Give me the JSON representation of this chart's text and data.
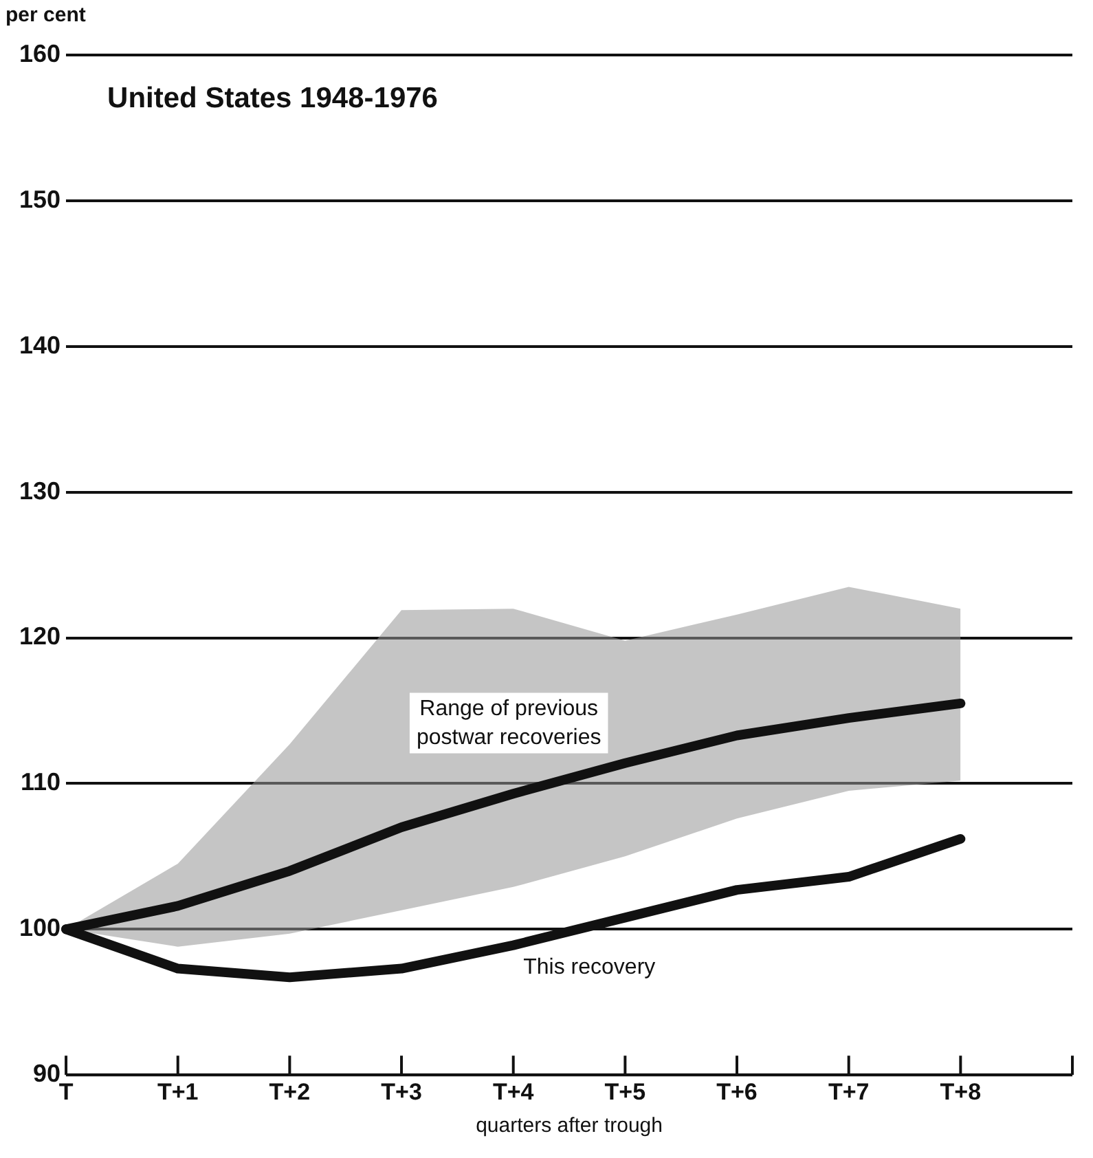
{
  "chart_data": {
    "type": "line",
    "title": "United States 1948-1976",
    "xlabel": "quarters after trough",
    "ylabel": "per cent",
    "categories": [
      "T",
      "T+1",
      "T+2",
      "T+3",
      "T+4",
      "T+5",
      "T+6",
      "T+7",
      "T+8",
      null
    ],
    "series": [
      {
        "color": "#111111",
        "values": [
          100,
          101.6,
          104,
          107,
          109.3,
          111.4,
          113.3,
          114.5,
          115.5,
          null
        ],
        "lower": [
          100,
          98.8,
          99.7,
          101.3,
          102.9,
          105,
          107.6,
          109.5,
          110.2,
          null
        ],
        "upper": [
          100,
          104.5,
          112.7,
          121.9,
          122,
          119.8,
          121.6,
          123.5,
          122,
          null
        ]
      },
      {
        "color": "#111111",
        "values": [
          100,
          97.3,
          96.7,
          97.3,
          98.9,
          100.8,
          102.7,
          103.6,
          106.2,
          null
        ]
      }
    ],
    "ylim": [
      90,
      160
    ],
    "yticks": [
      90,
      100,
      110,
      120,
      130,
      140,
      150,
      160
    ],
    "grid": "y",
    "legend": false,
    "marker": "none",
    "line_style": "solid",
    "annotations": [
      "Range of previous postwar recoveries",
      "This recovery"
    ]
  }
}
